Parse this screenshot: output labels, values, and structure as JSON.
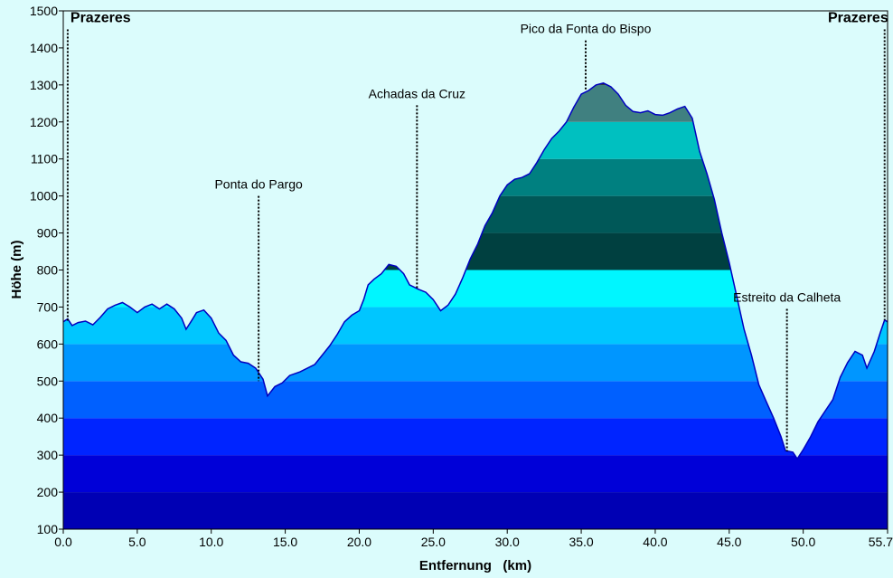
{
  "chart_data": {
    "type": "area",
    "xlabel": "Entfernung   (km)",
    "ylabel": "Höhe (m)",
    "xlim": [
      0,
      55.7
    ],
    "ylim": [
      100,
      1500
    ],
    "x_ticks": [
      {
        "value": 0,
        "label": "0.0"
      },
      {
        "value": 5,
        "label": "5.0"
      },
      {
        "value": 10,
        "label": "10.0"
      },
      {
        "value": 15,
        "label": "15.0"
      },
      {
        "value": 20,
        "label": "20.0"
      },
      {
        "value": 25,
        "label": "25.0"
      },
      {
        "value": 30,
        "label": "30.0"
      },
      {
        "value": 35,
        "label": "35.0"
      },
      {
        "value": 40,
        "label": "40.0"
      },
      {
        "value": 45,
        "label": "45.0"
      },
      {
        "value": 50,
        "label": "50.0"
      },
      {
        "value": 55.7,
        "label": "55.7"
      }
    ],
    "y_ticks": [
      100,
      200,
      300,
      400,
      500,
      600,
      700,
      800,
      900,
      1000,
      1100,
      1200,
      1300,
      1400,
      1500
    ],
    "band_colors": [
      {
        "from": 100,
        "to": 200,
        "color": "#0000b4"
      },
      {
        "from": 200,
        "to": 300,
        "color": "#0000d8"
      },
      {
        "from": 300,
        "to": 400,
        "color": "#0024ff"
      },
      {
        "from": 400,
        "to": 500,
        "color": "#0060ff"
      },
      {
        "from": 500,
        "to": 600,
        "color": "#0096ff"
      },
      {
        "from": 600,
        "to": 700,
        "color": "#00c6ff"
      },
      {
        "from": 700,
        "to": 800,
        "color": "#00f6ff"
      },
      {
        "from": 800,
        "to": 900,
        "color": "#004040"
      },
      {
        "from": 900,
        "to": 1000,
        "color": "#005858"
      },
      {
        "from": 1000,
        "to": 1100,
        "color": "#008080"
      },
      {
        "from": 1100,
        "to": 1200,
        "color": "#00c0c0"
      },
      {
        "from": 1200,
        "to": 1300,
        "color": "#408080"
      },
      {
        "from": 1300,
        "to": 1500,
        "color": "#202020"
      }
    ],
    "profile": [
      [
        0,
        660
      ],
      [
        0.3,
        668
      ],
      [
        0.6,
        650
      ],
      [
        1.0,
        658
      ],
      [
        1.5,
        662
      ],
      [
        2.0,
        652
      ],
      [
        2.5,
        672
      ],
      [
        3.0,
        695
      ],
      [
        3.5,
        705
      ],
      [
        4.0,
        712
      ],
      [
        4.5,
        700
      ],
      [
        5.0,
        685
      ],
      [
        5.5,
        700
      ],
      [
        6.0,
        708
      ],
      [
        6.5,
        695
      ],
      [
        7.0,
        708
      ],
      [
        7.5,
        695
      ],
      [
        8.0,
        670
      ],
      [
        8.3,
        640
      ],
      [
        8.7,
        665
      ],
      [
        9.0,
        685
      ],
      [
        9.5,
        692
      ],
      [
        10.0,
        670
      ],
      [
        10.5,
        630
      ],
      [
        11.0,
        610
      ],
      [
        11.5,
        570
      ],
      [
        12.0,
        552
      ],
      [
        12.5,
        548
      ],
      [
        13.0,
        535
      ],
      [
        13.5,
        505
      ],
      [
        13.8,
        460
      ],
      [
        14.3,
        485
      ],
      [
        14.8,
        495
      ],
      [
        15.3,
        515
      ],
      [
        16.0,
        525
      ],
      [
        17.0,
        545
      ],
      [
        17.5,
        570
      ],
      [
        18.0,
        595
      ],
      [
        18.5,
        625
      ],
      [
        19.0,
        660
      ],
      [
        19.5,
        678
      ],
      [
        20.0,
        690
      ],
      [
        20.3,
        720
      ],
      [
        20.6,
        760
      ],
      [
        21.0,
        775
      ],
      [
        21.5,
        790
      ],
      [
        22.0,
        815
      ],
      [
        22.5,
        810
      ],
      [
        23.0,
        790
      ],
      [
        23.4,
        760
      ],
      [
        24.0,
        748
      ],
      [
        24.5,
        740
      ],
      [
        25.0,
        720
      ],
      [
        25.5,
        690
      ],
      [
        26.0,
        705
      ],
      [
        26.5,
        735
      ],
      [
        27.0,
        780
      ],
      [
        27.5,
        830
      ],
      [
        28.0,
        870
      ],
      [
        28.5,
        920
      ],
      [
        29.0,
        955
      ],
      [
        29.5,
        1000
      ],
      [
        30.0,
        1030
      ],
      [
        30.5,
        1045
      ],
      [
        31.0,
        1050
      ],
      [
        31.5,
        1060
      ],
      [
        32.0,
        1090
      ],
      [
        32.5,
        1125
      ],
      [
        33.0,
        1155
      ],
      [
        33.5,
        1175
      ],
      [
        34.0,
        1200
      ],
      [
        34.5,
        1240
      ],
      [
        35.0,
        1275
      ],
      [
        35.5,
        1285
      ],
      [
        36.0,
        1300
      ],
      [
        36.5,
        1305
      ],
      [
        37.0,
        1295
      ],
      [
        37.5,
        1275
      ],
      [
        38.0,
        1245
      ],
      [
        38.5,
        1228
      ],
      [
        39.0,
        1225
      ],
      [
        39.5,
        1230
      ],
      [
        40.0,
        1220
      ],
      [
        40.5,
        1218
      ],
      [
        41.0,
        1225
      ],
      [
        41.5,
        1235
      ],
      [
        42.0,
        1242
      ],
      [
        42.5,
        1210
      ],
      [
        43.0,
        1120
      ],
      [
        43.5,
        1060
      ],
      [
        44.0,
        990
      ],
      [
        44.5,
        900
      ],
      [
        45.0,
        820
      ],
      [
        45.5,
        730
      ],
      [
        46.0,
        640
      ],
      [
        46.5,
        570
      ],
      [
        47.0,
        490
      ],
      [
        47.5,
        445
      ],
      [
        48.0,
        400
      ],
      [
        48.5,
        350
      ],
      [
        48.8,
        312
      ],
      [
        49.3,
        308
      ],
      [
        49.6,
        290
      ],
      [
        50.0,
        315
      ],
      [
        50.5,
        350
      ],
      [
        51.0,
        390
      ],
      [
        51.5,
        420
      ],
      [
        52.0,
        450
      ],
      [
        52.5,
        510
      ],
      [
        53.0,
        550
      ],
      [
        53.5,
        580
      ],
      [
        54.0,
        570
      ],
      [
        54.3,
        535
      ],
      [
        54.8,
        580
      ],
      [
        55.2,
        630
      ],
      [
        55.5,
        665
      ],
      [
        55.7,
        660
      ]
    ],
    "annotations": [
      {
        "label": "Prazeres",
        "x": 0.3,
        "y_top": 1450,
        "y_bottom": 660,
        "bold": true
      },
      {
        "label": "Ponta do Pargo",
        "x": 13.2,
        "y_top": 1000,
        "y_bottom": 500,
        "bold": false
      },
      {
        "label": "Achadas da Cruz",
        "x": 23.9,
        "y_top": 1245,
        "y_bottom": 750,
        "bold": false
      },
      {
        "label": "Pico da Fonta do Bispo",
        "x": 35.3,
        "y_top": 1420,
        "y_bottom": 1285,
        "bold": false
      },
      {
        "label": "Estreito da Calheta",
        "x": 48.9,
        "y_top": 695,
        "y_bottom": 310,
        "bold": false
      },
      {
        "label": "Prazeres",
        "x": 55.5,
        "y_top": 1450,
        "y_bottom": 665,
        "bold": true
      }
    ]
  }
}
